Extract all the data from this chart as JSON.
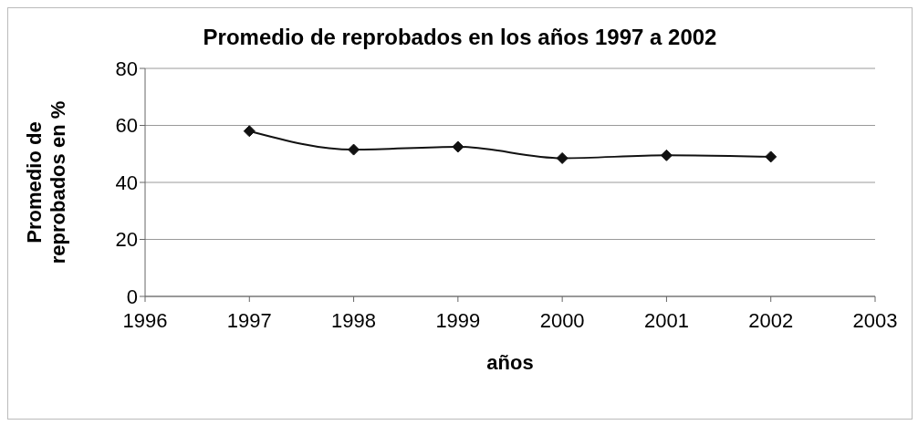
{
  "chart_data": {
    "type": "line",
    "title": "Promedio de reprobados en los años 1997 a 2002",
    "xlabel": "años",
    "ylabel": "Promedio de reprobados en %",
    "x": [
      1997,
      1998,
      1999,
      2000,
      2001,
      2002
    ],
    "series": [
      {
        "color": "#111111",
        "values": [
          58,
          51.5,
          52.5,
          48.5,
          49.5,
          49
        ]
      }
    ],
    "xlim": [
      1996,
      2003
    ],
    "xticks": [
      1996,
      1997,
      1998,
      1999,
      2000,
      2001,
      2002,
      2003
    ],
    "ylim": [
      0,
      80
    ],
    "yticks": [
      0,
      20,
      40,
      60,
      80
    ],
    "grid": "y",
    "marker": "diamond",
    "legend": false
  }
}
